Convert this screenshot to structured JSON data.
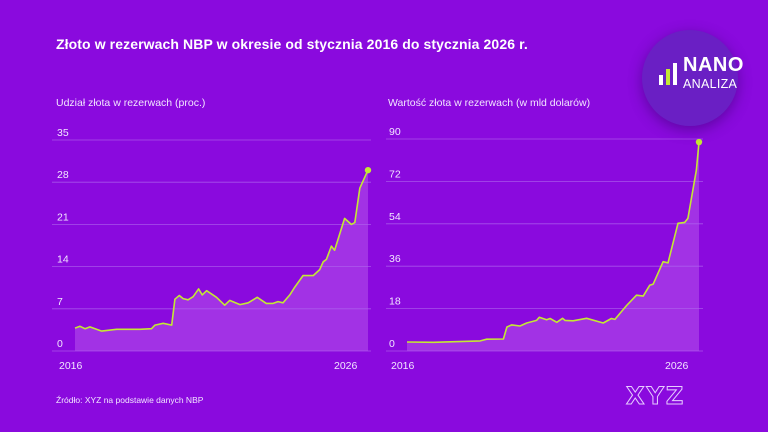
{
  "title": "Złoto w rezerwach NBP w okresie od stycznia 2016 do stycznia 2026 r.",
  "source": "Źródło: XYZ na podstawie danych NBP",
  "logo": {
    "line1": "NANO",
    "line2": "ANALIZA"
  },
  "watermark": "XYZ",
  "colors": {
    "background": "#8a0ade",
    "line": "#c4e834",
    "fill": "#a63ae6",
    "grid": "#b064ee"
  },
  "chart_data": [
    {
      "type": "area",
      "title": "Udział złota w rezerwach (proc.)",
      "ylim": [
        0,
        35
      ],
      "yticks": [
        "0",
        "7",
        "14",
        "21",
        "28",
        "35"
      ],
      "xlim": [
        2016,
        2026
      ],
      "xtick_labels": [
        "2016",
        "2026"
      ],
      "grid": true,
      "x": [
        2016.0,
        2016.17,
        2016.34,
        2016.51,
        2016.91,
        2017.42,
        2018.22,
        2018.61,
        2018.73,
        2019.01,
        2019.3,
        2019.41,
        2019.56,
        2019.69,
        2019.86,
        2020.03,
        2020.22,
        2020.34,
        2020.49,
        2020.83,
        2021.11,
        2021.28,
        2021.63,
        2021.91,
        2022.22,
        2022.53,
        2022.76,
        2022.93,
        2023.1,
        2023.33,
        2023.5,
        2023.78,
        2024.13,
        2024.35,
        2024.47,
        2024.58,
        2024.75,
        2024.86,
        2025.2,
        2025.43,
        2025.55,
        2025.72,
        2026.0
      ],
      "y": [
        3.8,
        4.1,
        3.7,
        4.0,
        3.3,
        3.6,
        3.6,
        3.7,
        4.3,
        4.6,
        4.3,
        8.6,
        9.2,
        8.7,
        8.5,
        9.0,
        10.3,
        9.3,
        10.0,
        8.9,
        7.6,
        8.4,
        7.7,
        8.0,
        8.9,
        7.9,
        7.9,
        8.2,
        8.0,
        9.3,
        10.6,
        12.5,
        12.5,
        13.5,
        14.8,
        15.2,
        17.4,
        16.7,
        22.0,
        21.0,
        21.3,
        27.0,
        30.0
      ]
    },
    {
      "type": "area",
      "title": "Wartość złota w rezerwach (w mld dolarów)",
      "ylim": [
        0,
        90
      ],
      "yticks": [
        "0",
        "18",
        "36",
        "54",
        "72",
        "90"
      ],
      "xlim": [
        2016,
        2026
      ],
      "xtick_labels": [
        "2016",
        "2026"
      ],
      "grid": true,
      "x": [
        2016.0,
        2016.91,
        2018.51,
        2018.73,
        2019.3,
        2019.42,
        2019.59,
        2019.87,
        2020.1,
        2020.44,
        2020.53,
        2020.78,
        2020.9,
        2021.13,
        2021.33,
        2021.41,
        2021.69,
        2022.15,
        2022.72,
        2023.0,
        2023.12,
        2023.52,
        2023.86,
        2024.09,
        2024.31,
        2024.43,
        2024.77,
        2024.94,
        2025.28,
        2025.51,
        2025.62,
        2025.91,
        2026.0
      ],
      "y": [
        3.8,
        3.7,
        4.3,
        5.0,
        5.1,
        10.2,
        11.1,
        10.6,
        11.9,
        13.0,
        14.3,
        13.3,
        13.8,
        12.2,
        13.9,
        13.0,
        12.8,
        13.9,
        11.9,
        13.8,
        13.4,
        19.3,
        23.7,
        23.3,
        27.9,
        28.4,
        37.9,
        37.4,
        54.2,
        54.6,
        56.3,
        76.9,
        88.7
      ]
    }
  ]
}
